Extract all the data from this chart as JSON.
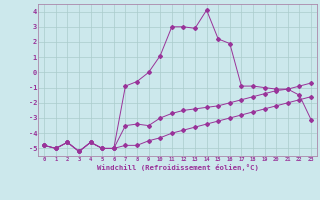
{
  "xlabel": "Windchill (Refroidissement éolien,°C)",
  "bg_color": "#cce8ec",
  "grid_color": "#aacccc",
  "line_color": "#993399",
  "spine_color": "#aa88aa",
  "x_hours": [
    0,
    1,
    2,
    3,
    4,
    5,
    6,
    7,
    8,
    9,
    10,
    11,
    12,
    13,
    14,
    15,
    16,
    17,
    18,
    19,
    20,
    21,
    22,
    23
  ],
  "line1_y": [
    -4.8,
    -5.0,
    -4.6,
    -5.2,
    -4.6,
    -5.0,
    -5.0,
    -0.9,
    -0.6,
    0.0,
    1.1,
    3.0,
    3.0,
    2.9,
    4.1,
    2.2,
    1.9,
    -0.9,
    -0.9,
    -1.0,
    -1.1,
    -1.1,
    -1.5,
    -3.1
  ],
  "line2_y": [
    -4.8,
    -5.0,
    -4.6,
    -5.2,
    -4.6,
    -5.0,
    -5.0,
    -3.5,
    -3.4,
    -3.5,
    -3.0,
    -2.7,
    -2.5,
    -2.4,
    -2.3,
    -2.2,
    -2.0,
    -1.8,
    -1.6,
    -1.4,
    -1.2,
    -1.1,
    -0.9,
    -0.7
  ],
  "line3_y": [
    -4.8,
    -5.0,
    -4.6,
    -5.2,
    -4.6,
    -5.0,
    -5.0,
    -4.8,
    -4.8,
    -4.5,
    -4.3,
    -4.0,
    -3.8,
    -3.6,
    -3.4,
    -3.2,
    -3.0,
    -2.8,
    -2.6,
    -2.4,
    -2.2,
    -2.0,
    -1.8,
    -1.6
  ],
  "ylim": [
    -5.5,
    4.5
  ],
  "yticks": [
    -5,
    -4,
    -3,
    -2,
    -1,
    0,
    1,
    2,
    3,
    4
  ],
  "xlim": [
    -0.5,
    23.5
  ]
}
